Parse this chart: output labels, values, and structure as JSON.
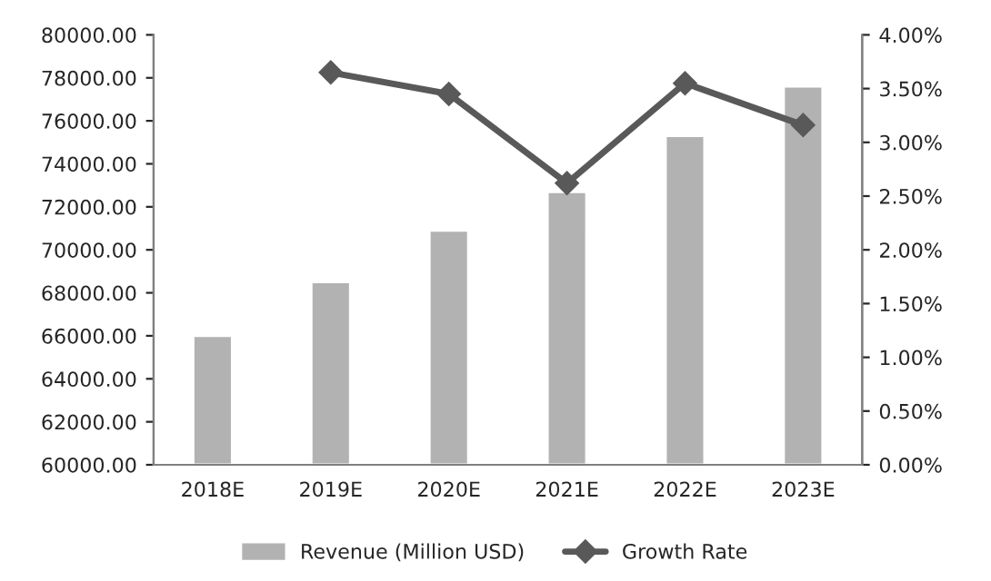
{
  "chart_data": {
    "type": "bar",
    "categories": [
      "2018E",
      "2019E",
      "2020E",
      "2021E",
      "2022E",
      "2023E"
    ],
    "series": [
      {
        "name": "Revenue (Million USD)",
        "color": "#b2b2b2",
        "values": [
          66000,
          68500,
          70900,
          72700,
          75300,
          77600
        ]
      },
      {
        "name": "Growth Rate",
        "type": "line",
        "axis": "y2",
        "color": "#595959",
        "marker": "diamond",
        "values": [
          null,
          3.65,
          3.45,
          2.62,
          3.55,
          3.16
        ]
      }
    ],
    "ylim": [
      60000,
      80000
    ],
    "yticks": [
      {
        "value": 60000,
        "label": "60000.00"
      },
      {
        "value": 62000,
        "label": "62000.00"
      },
      {
        "value": 64000,
        "label": "64000.00"
      },
      {
        "value": 66000,
        "label": "66000.00"
      },
      {
        "value": 68000,
        "label": "68000.00"
      },
      {
        "value": 70000,
        "label": "70000.00"
      },
      {
        "value": 72000,
        "label": "72000.00"
      },
      {
        "value": 74000,
        "label": "74000.00"
      },
      {
        "value": 76000,
        "label": "76000.00"
      },
      {
        "value": 78000,
        "label": "78000.00"
      },
      {
        "value": 80000,
        "label": "80000.00"
      }
    ],
    "y2lim": [
      0,
      4
    ],
    "y2ticks": [
      {
        "value": 0,
        "label": "0.00%"
      },
      {
        "value": 0.5,
        "label": "0.50%"
      },
      {
        "value": 1,
        "label": "1.00%"
      },
      {
        "value": 1.5,
        "label": "1.50%"
      },
      {
        "value": 2,
        "label": "2.00%"
      },
      {
        "value": 2.5,
        "label": "2.50%"
      },
      {
        "value": 3,
        "label": "3.00%"
      },
      {
        "value": 3.5,
        "label": "3.50%"
      },
      {
        "value": 4,
        "label": "4.00%"
      }
    ],
    "legend": "bottom"
  }
}
